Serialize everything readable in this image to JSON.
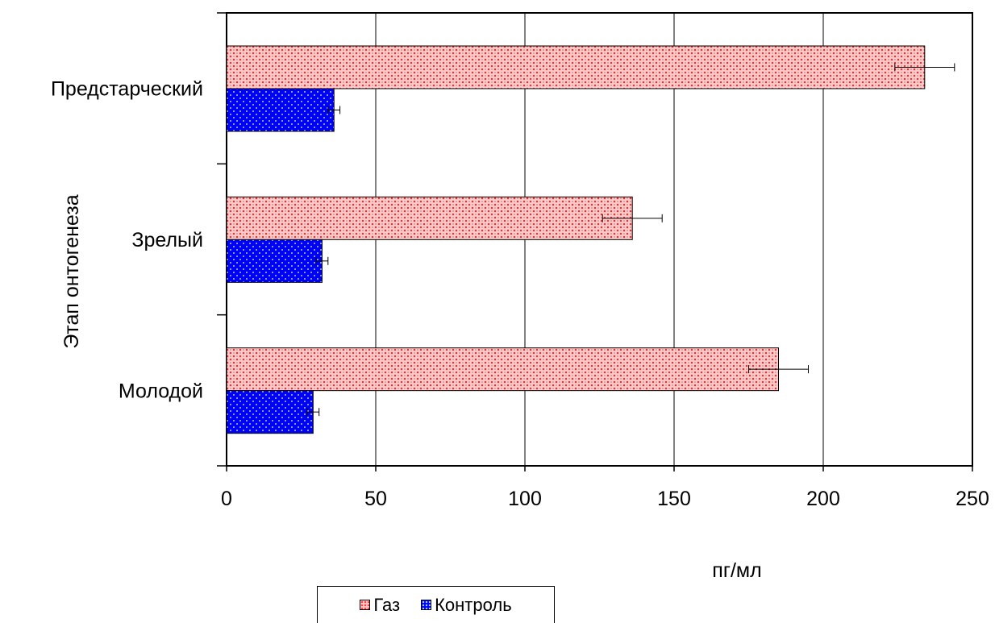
{
  "chart_data": {
    "type": "bar",
    "orientation": "horizontal",
    "categories": [
      "Предстарческий",
      "Зрелый",
      "Молодой"
    ],
    "series": [
      {
        "name": "Газ",
        "values": [
          234,
          136,
          185
        ],
        "errors": [
          10,
          10,
          10
        ],
        "color": "#ff3b3b"
      },
      {
        "name": "Контроль",
        "values": [
          36,
          32,
          29
        ],
        "errors": [
          2,
          2,
          2
        ],
        "color": "#0000ff"
      }
    ],
    "xlabel": "пг/мл",
    "ylabel": "Этап онтогенеза",
    "xlim": [
      0,
      250
    ],
    "xticks": [
      "0",
      "50",
      "100",
      "150",
      "200",
      "250"
    ],
    "grid": true,
    "legend_position": "bottom"
  }
}
